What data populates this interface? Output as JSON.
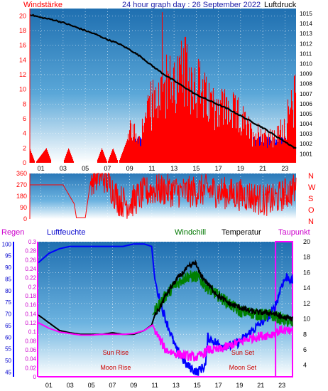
{
  "header": {
    "left_label": "Windstärke",
    "title": "24 hour graph day : 26 September 2022",
    "right_label": "Luftdruck"
  },
  "bottom_header": {
    "regen": "Regen",
    "luftfeuchte": "Luftfeuchte",
    "windchill": "Windchill",
    "temperatur": "Temperatur",
    "taupunkt": "Taupunkt"
  },
  "annotations": {
    "sun_rise": "Sun Rise",
    "moon_rise": "Moon Rise",
    "sun_set": "Sun Set",
    "moon_set": "Moon Set"
  },
  "colors": {
    "wind": "#ff0000",
    "gust_band": "#0000ff",
    "pressure": "#000000",
    "direction": "#ff0000",
    "humidity": "#0000ff",
    "temperature": "#000000",
    "windchill": "#008000",
    "dewpoint": "#ff00ff",
    "rain": "#ff00ff"
  },
  "chart_data": [
    {
      "type": "bar",
      "name_ref": "wind_pressure",
      "x_ticks": [
        "01",
        "03",
        "05",
        "07",
        "09",
        "11",
        "13",
        "15",
        "17",
        "19",
        "21",
        "23"
      ],
      "x_range_hours": [
        0,
        24
      ],
      "left_axis_ticks": [
        "0",
        "2",
        "4",
        "6",
        "8",
        "10",
        "12",
        "14",
        "16",
        "18",
        "20"
      ],
      "left_range": [
        0,
        21
      ],
      "right_axis_ticks": [
        "1001",
        "1002",
        "1003",
        "1004",
        "1005",
        "1006",
        "1007",
        "1008",
        "1009",
        "1010",
        "1011",
        "1012",
        "1013",
        "1014",
        "1015"
      ],
      "right_range": [
        1000.1,
        1015.5
      ],
      "wind_keyframes_hour_value": [
        [
          0,
          2
        ],
        [
          0.5,
          0
        ],
        [
          1.5,
          2
        ],
        [
          2,
          0
        ],
        [
          3,
          0
        ],
        [
          3.5,
          2
        ],
        [
          4,
          0
        ],
        [
          6,
          0
        ],
        [
          6.5,
          2
        ],
        [
          7,
          0
        ],
        [
          7.5,
          2
        ],
        [
          8,
          0
        ],
        [
          8.5,
          2
        ],
        [
          9,
          4
        ],
        [
          10,
          4
        ],
        [
          11,
          8
        ],
        [
          12,
          10
        ],
        [
          13,
          11
        ],
        [
          14,
          12
        ],
        [
          15,
          11
        ],
        [
          16,
          8
        ],
        [
          17,
          8
        ],
        [
          18,
          7
        ],
        [
          19,
          6
        ],
        [
          20,
          4
        ],
        [
          21,
          4
        ],
        [
          22,
          3
        ],
        [
          23,
          5
        ],
        [
          24,
          9
        ]
      ],
      "gust_band_range": [
        0.8,
        3.6
      ],
      "pressure_keyframes_hour_value": [
        [
          0,
          1014.9
        ],
        [
          1,
          1014.6
        ],
        [
          2,
          1014.4
        ],
        [
          3,
          1014.1
        ],
        [
          4,
          1013.7
        ],
        [
          5,
          1013.3
        ],
        [
          6,
          1012.9
        ],
        [
          7,
          1012.4
        ],
        [
          8,
          1012.0
        ],
        [
          9,
          1011.4
        ],
        [
          10,
          1010.7
        ],
        [
          11,
          1009.8
        ],
        [
          12,
          1009.0
        ],
        [
          13,
          1008.3
        ],
        [
          14,
          1007.6
        ],
        [
          15,
          1006.9
        ],
        [
          16,
          1006.4
        ],
        [
          17,
          1005.9
        ],
        [
          18,
          1005.4
        ],
        [
          19,
          1004.8
        ],
        [
          20,
          1004.2
        ],
        [
          21,
          1003.6
        ],
        [
          22,
          1002.9
        ],
        [
          23,
          1002.2
        ],
        [
          24,
          1001.5
        ]
      ]
    },
    {
      "type": "line",
      "name_ref": "wind_direction",
      "left_axis_ticks": [
        "0",
        "90",
        "180",
        "270",
        "360"
      ],
      "right_axis_ticks": [
        "N",
        "W",
        "S",
        "O",
        "N"
      ],
      "range": [
        0,
        360
      ],
      "keyframes_hour_value": [
        [
          0,
          270
        ],
        [
          3,
          270
        ],
        [
          4,
          120
        ],
        [
          4.2,
          10
        ],
        [
          5,
          10
        ],
        [
          5.5,
          310
        ],
        [
          6,
          340
        ],
        [
          6.5,
          350
        ],
        [
          7,
          300
        ],
        [
          8,
          150
        ],
        [
          9,
          120
        ],
        [
          10,
          190
        ],
        [
          11,
          230
        ],
        [
          12,
          230
        ],
        [
          14,
          210
        ],
        [
          16,
          230
        ],
        [
          18,
          200
        ],
        [
          20,
          180
        ],
        [
          21,
          150
        ],
        [
          22,
          150
        ],
        [
          23,
          200
        ],
        [
          24,
          240
        ]
      ]
    },
    {
      "type": "line",
      "name_ref": "rain_humidity_temperature",
      "rain_axis_ticks": [
        "0",
        "0.02",
        "0.04",
        "0.06",
        "0.08",
        "0.1",
        "0.12",
        "0.14",
        "0.16",
        "0.18",
        "0.2",
        "0.22",
        "0.24",
        "0.26",
        "0.28",
        "0.3"
      ],
      "rain_range": [
        0,
        0.3
      ],
      "humidity_axis_ticks": [
        "45",
        "50",
        "55",
        "60",
        "65",
        "70",
        "75",
        "80",
        "85",
        "90",
        "95",
        "100"
      ],
      "humidity_range": [
        43,
        101
      ],
      "temperature_axis_ticks": [
        "4",
        "6",
        "8",
        "10",
        "12",
        "14",
        "16",
        "18",
        "20"
      ],
      "temperature_range": [
        2.5,
        20
      ],
      "humidity_keyframes": [
        [
          0,
          92
        ],
        [
          1,
          96
        ],
        [
          2,
          98
        ],
        [
          3,
          99
        ],
        [
          5,
          99
        ],
        [
          7,
          99
        ],
        [
          8,
          99
        ],
        [
          9,
          100
        ],
        [
          10,
          100
        ],
        [
          10.7,
          99
        ],
        [
          11,
          85
        ],
        [
          11.5,
          75
        ],
        [
          12,
          68
        ],
        [
          13,
          55
        ],
        [
          14,
          48
        ],
        [
          15,
          45
        ],
        [
          15.8,
          48
        ],
        [
          16,
          60
        ],
        [
          17,
          57
        ],
        [
          18,
          56
        ],
        [
          19,
          58
        ],
        [
          20,
          62
        ],
        [
          21,
          66
        ],
        [
          22,
          70
        ],
        [
          22.5,
          75
        ],
        [
          23,
          83
        ],
        [
          23.5,
          86
        ],
        [
          24,
          84
        ]
      ],
      "temperature_keyframes": [
        [
          0,
          10.5
        ],
        [
          1,
          9.5
        ],
        [
          2,
          8.5
        ],
        [
          3,
          8.2
        ],
        [
          4,
          8
        ],
        [
          5,
          8
        ],
        [
          6,
          8
        ],
        [
          7,
          8.2
        ],
        [
          8,
          8
        ],
        [
          9,
          8
        ],
        [
          10,
          8.5
        ],
        [
          10.7,
          9.2
        ],
        [
          11,
          10.5
        ],
        [
          11.5,
          11.5
        ],
        [
          12,
          13
        ],
        [
          13,
          15
        ],
        [
          14,
          16.5
        ],
        [
          14.8,
          17.3
        ],
        [
          15.2,
          16
        ],
        [
          16,
          14.5
        ],
        [
          17,
          13
        ],
        [
          18,
          12
        ],
        [
          19,
          11.5
        ],
        [
          20,
          11
        ],
        [
          21,
          10.8
        ],
        [
          22,
          10.8
        ],
        [
          23,
          10.2
        ],
        [
          24,
          10
        ]
      ],
      "windchill_keyframes": [
        [
          10.8,
          10.5
        ],
        [
          11.5,
          12
        ],
        [
          12,
          13
        ],
        [
          13,
          14.5
        ],
        [
          14,
          15.5
        ],
        [
          15,
          15.5
        ],
        [
          16,
          14
        ],
        [
          17,
          13
        ],
        [
          18,
          12
        ],
        [
          19,
          11
        ],
        [
          20,
          10.8
        ],
        [
          21,
          10.5
        ],
        [
          22,
          10.5
        ],
        [
          23,
          10
        ],
        [
          24,
          9.5
        ]
      ],
      "dewpoint_keyframes": [
        [
          0,
          9.5
        ],
        [
          1,
          8.8
        ],
        [
          2,
          8.3
        ],
        [
          3,
          8.1
        ],
        [
          4,
          7.9
        ],
        [
          5,
          7.9
        ],
        [
          6,
          8
        ],
        [
          7,
          8
        ],
        [
          8,
          8
        ],
        [
          9,
          8.1
        ],
        [
          10,
          8.5
        ],
        [
          10.8,
          9.2
        ],
        [
          11.2,
          8
        ],
        [
          12,
          6
        ],
        [
          13,
          5.5
        ],
        [
          14,
          5.2
        ],
        [
          15,
          5
        ],
        [
          15.6,
          5.5
        ],
        [
          16,
          6
        ],
        [
          17,
          6
        ],
        [
          18,
          6.5
        ],
        [
          19,
          7
        ],
        [
          20,
          7.5
        ],
        [
          21,
          7.8
        ],
        [
          22,
          8
        ],
        [
          23,
          8.6
        ],
        [
          24,
          8.2
        ]
      ],
      "rain_value": 0,
      "sun_rise_hour": 7.3,
      "sun_set_hour": 19.3,
      "moon_rise_hour": 7.3,
      "moon_set_hour": 19.3
    }
  ]
}
